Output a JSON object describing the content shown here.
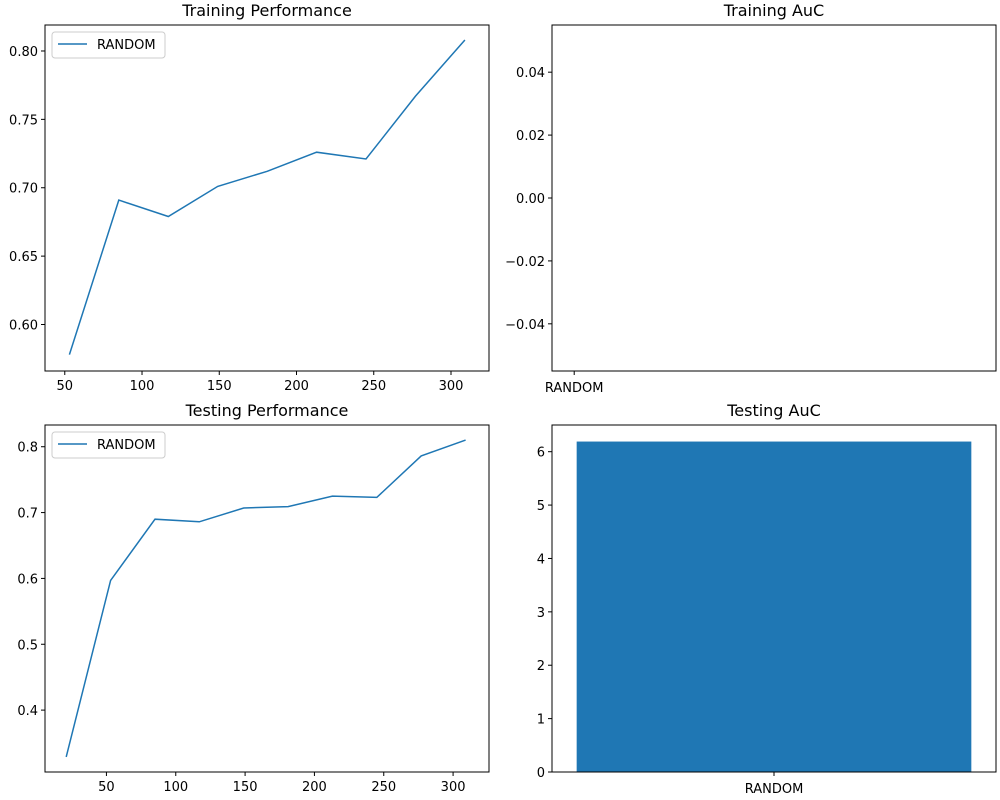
{
  "colors": {
    "series": "#1f77b4"
  },
  "chart_data": [
    {
      "type": "line",
      "title": "Training Performance",
      "xlabel": "",
      "ylabel": "",
      "xlim": [
        37.2,
        324.6
      ],
      "ylim": [
        0.566,
        0.819
      ],
      "xticks": [
        50,
        100,
        150,
        200,
        250,
        300
      ],
      "yticks": [
        0.6,
        0.65,
        0.7,
        0.75,
        0.8
      ],
      "ytick_labels": [
        "0.60",
        "0.65",
        "0.70",
        "0.75",
        "0.80"
      ],
      "legend": "top-left",
      "series": [
        {
          "name": "RANDOM",
          "x": [
            53,
            85,
            117,
            149,
            181,
            213,
            245,
            277,
            309
          ],
          "y": [
            0.578,
            0.691,
            0.679,
            0.701,
            0.712,
            0.726,
            0.721,
            0.767,
            0.808
          ]
        }
      ]
    },
    {
      "type": "bar",
      "title": "Training AuC",
      "categories": [
        "RANDOM"
      ],
      "values": [
        0
      ],
      "xlim": [
        -0.5,
        0.5
      ],
      "ylim": [
        -0.055,
        0.055
      ],
      "yticks": [
        -0.04,
        -0.02,
        0.0,
        0.02,
        0.04
      ],
      "ytick_labels": [
        "−0.04",
        "−0.02",
        "0.00",
        "0.02",
        "0.04"
      ],
      "xtick_category_pos": -0.45
    },
    {
      "type": "line",
      "title": "Testing Performance",
      "xlabel": "",
      "ylabel": "",
      "xlim": [
        5.7,
        325.9
      ],
      "ylim": [
        0.306,
        0.833
      ],
      "xticks": [
        50,
        100,
        150,
        200,
        250,
        300
      ],
      "yticks": [
        0.4,
        0.5,
        0.6,
        0.7,
        0.8
      ],
      "ytick_labels": [
        "0.4",
        "0.5",
        "0.6",
        "0.7",
        "0.8"
      ],
      "legend": "top-left",
      "series": [
        {
          "name": "RANDOM",
          "x": [
            21,
            53,
            85,
            117,
            149,
            181,
            213,
            245,
            277,
            309
          ],
          "y": [
            0.329,
            0.597,
            0.69,
            0.686,
            0.707,
            0.709,
            0.725,
            0.723,
            0.786,
            0.81
          ]
        }
      ]
    },
    {
      "type": "bar",
      "title": "Testing AuC",
      "categories": [
        "RANDOM"
      ],
      "values": [
        6.19
      ],
      "xlim": [
        -0.45,
        0.45
      ],
      "ylim": [
        0,
        6.5
      ],
      "yticks": [
        0,
        1,
        2,
        3,
        4,
        5,
        6
      ],
      "ytick_labels": [
        "0",
        "1",
        "2",
        "3",
        "4",
        "5",
        "6"
      ],
      "bar_width": 0.8
    }
  ]
}
